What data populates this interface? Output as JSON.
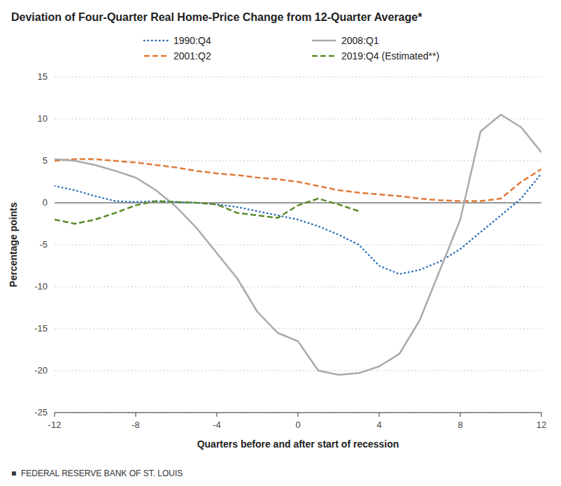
{
  "chart_data": {
    "type": "line",
    "title": "Deviation of Four-Quarter Real Home-Price Change from 12-Quarter Average*",
    "x_label": "Quarters before and after start of recession",
    "y_label": "Percentage points",
    "footer": "■  FEDERAL RESERVE BANK OF ST. LOUIS",
    "x": [
      -12,
      -11,
      -10,
      -9,
      -8,
      -7,
      -6,
      -5,
      -4,
      -3,
      -2,
      -1,
      0,
      1,
      2,
      3,
      4,
      5,
      6,
      7,
      8,
      9,
      10,
      11,
      12
    ],
    "xlim": [
      -12,
      12
    ],
    "xticks": [
      -12,
      -8,
      -4,
      0,
      4,
      8,
      12
    ],
    "ylim": [
      -25,
      15
    ],
    "yticks": [
      -25,
      -20,
      -15,
      -10,
      -5,
      0,
      5,
      10,
      15
    ],
    "grid": true,
    "legend": "top",
    "series": [
      {
        "name": "1990:Q4",
        "color": "#2e6fbb",
        "line_style": "dotted",
        "values": [
          2.0,
          1.5,
          0.8,
          0.2,
          0.1,
          0.2,
          0.1,
          0.0,
          -0.2,
          -0.5,
          -1.0,
          -1.5,
          -2.0,
          -2.8,
          -3.8,
          -5.0,
          -7.5,
          -8.5,
          -8.0,
          -7.0,
          -5.5,
          -3.5,
          -1.5,
          0.5,
          3.5
        ]
      },
      {
        "name": "2001:Q2",
        "color": "#e07b39",
        "line_style": "dashed",
        "values": [
          5.0,
          5.2,
          5.2,
          5.0,
          4.8,
          4.5,
          4.2,
          3.8,
          3.5,
          3.3,
          3.0,
          2.8,
          2.5,
          2.0,
          1.5,
          1.2,
          1.0,
          0.8,
          0.5,
          0.3,
          0.2,
          0.2,
          0.5,
          2.5,
          4.0
        ]
      },
      {
        "name": "2008:Q1",
        "color": "#aaaaaa",
        "line_style": "solid",
        "values": [
          5.2,
          5.0,
          4.5,
          3.8,
          3.0,
          1.5,
          -0.5,
          -3.0,
          -6.0,
          -9.0,
          -13.0,
          -15.5,
          -16.5,
          -20.0,
          -20.5,
          -20.3,
          -19.5,
          -18.0,
          -14.0,
          -8.0,
          -2.0,
          8.5,
          10.5,
          9.0,
          6.0
        ]
      },
      {
        "name": "2019:Q4 (Estimated**)",
        "color": "#5a8a2a",
        "line_style": "dashed",
        "values": [
          -2.0,
          -2.5,
          -2.0,
          -1.2,
          -0.3,
          0.2,
          0.1,
          0.0,
          -0.2,
          -1.2,
          -1.5,
          -1.8,
          -0.3,
          0.5,
          -0.2,
          -1.0,
          null,
          null,
          null,
          null,
          null,
          null,
          null,
          null,
          null
        ]
      }
    ]
  }
}
